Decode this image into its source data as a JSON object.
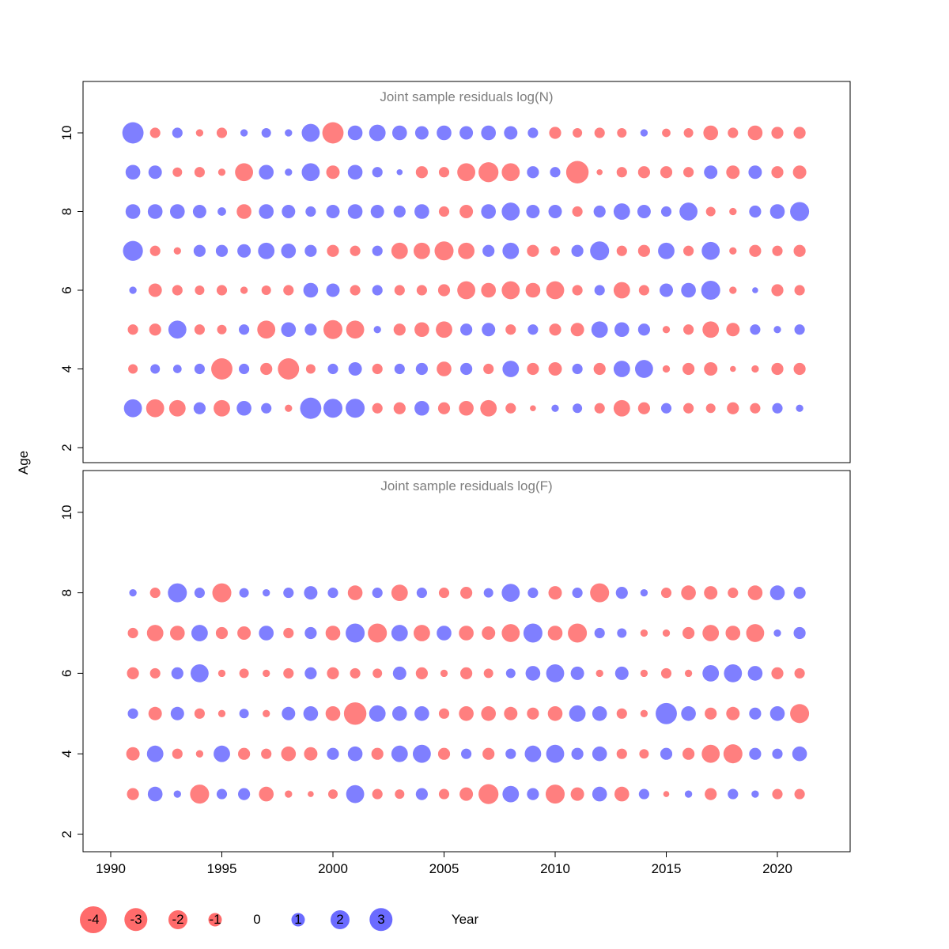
{
  "figure": {
    "xlabel": "Year",
    "ylabel": "Age",
    "x_ticks": [
      1990,
      1995,
      2000,
      2005,
      2010,
      2015,
      2020
    ],
    "y_ticks": [
      2,
      4,
      6,
      8,
      10
    ],
    "colors": {
      "negative": "#ff0000",
      "positive": "#0000ff",
      "bubble_opacity": 0.5,
      "title_gray": "#7e7e7e"
    }
  },
  "legend": {
    "entries": [
      {
        "label": "-4",
        "value": -4
      },
      {
        "label": "-3",
        "value": -3
      },
      {
        "label": "-2",
        "value": -2
      },
      {
        "label": "-1",
        "value": -1
      },
      {
        "label": "0",
        "value": 0
      },
      {
        "label": "1",
        "value": 1
      },
      {
        "label": "2",
        "value": 2
      },
      {
        "label": "3",
        "value": 3
      }
    ]
  },
  "chart_data": [
    {
      "type": "scatter",
      "title": "Joint sample residuals log(N)",
      "xlabel": "Year",
      "ylabel": "Age",
      "xlim": [
        1989,
        2023
      ],
      "ylim": [
        1.6,
        10.8
      ],
      "grid": false,
      "encoding": "bubble: color = sign of residual (red negative, blue positive), area proportional to |residual|",
      "x_years": [
        1991,
        1992,
        1993,
        1994,
        1995,
        1996,
        1997,
        1998,
        1999,
        2000,
        2001,
        2002,
        2003,
        2004,
        2005,
        2006,
        2007,
        2008,
        2009,
        2010,
        2011,
        2012,
        2013,
        2014,
        2015,
        2016,
        2017,
        2018,
        2019,
        2020,
        2021
      ],
      "series": [
        {
          "name": "age 10",
          "age": 10,
          "values": [
            2.5,
            -0.6,
            0.6,
            -0.3,
            -0.6,
            0.3,
            0.5,
            0.3,
            1.8,
            -2.5,
            1.2,
            1.5,
            1.2,
            1.0,
            1.2,
            1.0,
            1.2,
            1.0,
            0.6,
            -0.8,
            -0.5,
            -0.6,
            -0.5,
            0.3,
            -0.4,
            -0.5,
            -1.2,
            -0.6,
            -1.2,
            -0.8,
            -0.8
          ]
        },
        {
          "name": "age 9",
          "age": 9,
          "values": [
            1.2,
            1.0,
            -0.5,
            -0.6,
            -0.3,
            -1.8,
            1.2,
            0.3,
            1.8,
            -1.0,
            1.2,
            0.6,
            0.2,
            -0.8,
            -0.6,
            -1.8,
            -2.2,
            -1.8,
            0.8,
            0.6,
            -2.8,
            -0.2,
            -0.6,
            -0.8,
            -0.8,
            -0.6,
            1.0,
            -1.0,
            1.0,
            -0.8,
            -1.0
          ]
        },
        {
          "name": "age 8",
          "age": 8,
          "values": [
            1.2,
            1.2,
            1.2,
            1.0,
            0.4,
            -1.2,
            1.2,
            1.0,
            0.6,
            1.0,
            1.2,
            1.0,
            0.8,
            1.2,
            -0.6,
            -1.0,
            1.2,
            1.8,
            1.0,
            1.0,
            -0.6,
            0.8,
            1.5,
            1.0,
            0.6,
            1.8,
            -0.5,
            -0.3,
            0.8,
            1.2,
            2.0
          ]
        },
        {
          "name": "age 7",
          "age": 7,
          "values": [
            2.2,
            -0.6,
            -0.3,
            0.8,
            0.8,
            1.0,
            1.5,
            1.2,
            0.8,
            -0.8,
            -0.6,
            0.6,
            -1.5,
            -1.5,
            -2.0,
            -1.5,
            0.8,
            1.5,
            -0.8,
            -0.5,
            0.8,
            2.0,
            -0.6,
            -0.8,
            1.5,
            -0.6,
            1.8,
            -0.3,
            -0.8,
            -0.6,
            -0.8
          ]
        },
        {
          "name": "age 6",
          "age": 6,
          "values": [
            0.3,
            -1.0,
            -0.6,
            -0.5,
            -0.6,
            -0.3,
            -0.5,
            -0.6,
            1.2,
            1.0,
            -0.6,
            0.6,
            -0.6,
            -0.6,
            -0.8,
            -1.8,
            -1.2,
            -1.8,
            -1.2,
            -1.8,
            -0.6,
            0.6,
            -1.5,
            -0.6,
            1.0,
            1.2,
            2.0,
            -0.3,
            0.2,
            -0.8,
            -0.6
          ]
        },
        {
          "name": "age 5",
          "age": 5,
          "values": [
            -0.6,
            -0.8,
            1.8,
            -0.6,
            -0.5,
            0.6,
            -1.8,
            1.2,
            0.8,
            -2.0,
            -1.8,
            0.3,
            -0.8,
            -1.2,
            -1.5,
            0.8,
            1.0,
            -0.6,
            0.6,
            -0.8,
            -1.0,
            1.5,
            1.2,
            0.8,
            -0.3,
            -0.6,
            -1.5,
            -1.0,
            0.6,
            0.3,
            0.6
          ]
        },
        {
          "name": "age 4",
          "age": 4,
          "values": [
            -0.5,
            0.5,
            0.4,
            0.6,
            -2.5,
            0.6,
            -0.8,
            -2.5,
            -0.5,
            0.6,
            1.0,
            -0.6,
            0.6,
            0.8,
            -1.2,
            0.8,
            -0.6,
            1.5,
            -0.8,
            -1.0,
            0.6,
            -0.8,
            1.5,
            1.8,
            -0.3,
            -0.8,
            -1.0,
            -0.2,
            -0.3,
            -0.8,
            -0.8
          ]
        },
        {
          "name": "age 3",
          "age": 3,
          "values": [
            1.8,
            -1.8,
            -1.5,
            0.8,
            -1.5,
            1.2,
            0.6,
            -0.3,
            2.5,
            2.0,
            2.0,
            -0.6,
            -0.8,
            1.2,
            -0.8,
            -1.2,
            -1.5,
            -0.6,
            -0.2,
            0.3,
            0.5,
            -0.6,
            -1.5,
            -0.8,
            0.6,
            -0.6,
            -0.5,
            -0.8,
            -0.6,
            0.6,
            0.3
          ]
        }
      ]
    },
    {
      "type": "scatter",
      "title": "Joint sample residuals log(F)",
      "xlabel": "Year",
      "ylabel": "Age",
      "xlim": [
        1989,
        2023
      ],
      "ylim": [
        1.6,
        10.8
      ],
      "grid": false,
      "encoding": "bubble: color = sign of residual (red negative, blue positive), area proportional to |residual|",
      "x_years": [
        1991,
        1992,
        1993,
        1994,
        1995,
        1996,
        1997,
        1998,
        1999,
        2000,
        2001,
        2002,
        2003,
        2004,
        2005,
        2006,
        2007,
        2008,
        2009,
        2010,
        2011,
        2012,
        2013,
        2014,
        2015,
        2016,
        2017,
        2018,
        2019,
        2020,
        2021
      ],
      "series": [
        {
          "name": "age 8",
          "age": 8,
          "values": [
            0.3,
            -0.6,
            2.0,
            0.6,
            -2.0,
            0.5,
            0.3,
            0.6,
            1.0,
            0.6,
            -1.2,
            0.6,
            -1.5,
            0.6,
            -0.6,
            -0.8,
            0.5,
            1.8,
            0.6,
            -1.0,
            0.6,
            -2.0,
            0.8,
            0.3,
            -0.6,
            -1.2,
            -1.0,
            -0.6,
            -1.2,
            1.2,
            0.8
          ]
        },
        {
          "name": "age 7",
          "age": 7,
          "values": [
            -0.6,
            -1.5,
            -1.2,
            1.5,
            -0.8,
            -1.0,
            1.2,
            -0.6,
            0.8,
            -1.2,
            2.0,
            -2.0,
            1.5,
            -1.5,
            1.2,
            -1.2,
            -1.0,
            -1.8,
            2.0,
            -1.2,
            -2.0,
            0.6,
            0.5,
            -0.3,
            -0.3,
            -0.8,
            -1.5,
            -1.2,
            -1.8,
            0.3,
            0.8
          ]
        },
        {
          "name": "age 6",
          "age": 6,
          "values": [
            -0.8,
            -0.6,
            0.8,
            1.8,
            -0.3,
            -0.5,
            -0.3,
            -0.6,
            0.8,
            -0.8,
            -0.6,
            -0.5,
            1.0,
            -0.8,
            -0.3,
            -0.8,
            -0.5,
            0.5,
            1.2,
            1.8,
            1.0,
            -0.3,
            1.0,
            -0.3,
            -0.6,
            -0.3,
            1.5,
            1.8,
            1.2,
            -0.8,
            -0.6
          ]
        },
        {
          "name": "age 5",
          "age": 5,
          "values": [
            0.6,
            -1.0,
            1.0,
            -0.6,
            -0.3,
            0.5,
            -0.3,
            1.0,
            1.2,
            -1.2,
            -2.8,
            1.5,
            1.2,
            1.2,
            -0.6,
            -1.2,
            -1.2,
            -1.0,
            -0.8,
            -1.2,
            1.5,
            1.2,
            -0.6,
            -0.3,
            2.5,
            1.2,
            -0.8,
            -1.0,
            0.8,
            1.2,
            -2.0
          ]
        },
        {
          "name": "age 4",
          "age": 4,
          "values": [
            -1.0,
            1.5,
            -0.6,
            -0.3,
            1.5,
            -0.8,
            -0.6,
            -1.2,
            -1.0,
            0.8,
            1.2,
            -0.8,
            1.5,
            1.8,
            -0.8,
            0.6,
            -0.8,
            0.6,
            1.5,
            1.8,
            0.8,
            1.2,
            -0.6,
            -0.5,
            0.8,
            -0.8,
            -1.8,
            -2.0,
            0.8,
            0.6,
            1.2
          ]
        },
        {
          "name": "age 3",
          "age": 3,
          "values": [
            -0.8,
            1.2,
            0.3,
            -2.0,
            0.6,
            0.8,
            -1.2,
            -0.3,
            -0.2,
            -0.5,
            1.8,
            -0.6,
            -0.5,
            0.8,
            -0.6,
            -1.0,
            -2.2,
            1.5,
            0.8,
            -2.0,
            -1.0,
            1.2,
            -1.2,
            0.6,
            -0.2,
            0.3,
            -0.8,
            0.6,
            0.3,
            -0.6,
            -0.6
          ]
        }
      ]
    }
  ]
}
